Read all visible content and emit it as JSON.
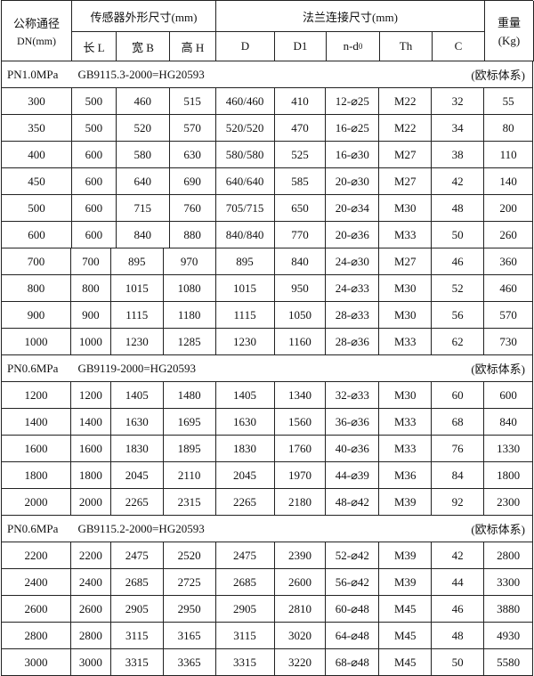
{
  "header": {
    "dn_label": "公称通径",
    "dn_unit": "DN(mm)",
    "sensor_group": "传感器外形尺寸(mm)",
    "flange_group": "法兰连接尺寸(mm)",
    "weight_label": "重量",
    "weight_unit": "(Kg)",
    "columns": [
      "长 L",
      "宽 B",
      "高 H",
      "D",
      "D1",
      "n-d",
      "Th",
      "C"
    ],
    "nd_subscript": "0"
  },
  "sections": [
    {
      "pressure": "PN1.0MPa",
      "standard": "GB9115.3-2000=HG20593",
      "system": "(欧标体系)",
      "rows": [
        [
          "300",
          "500",
          "460",
          "515",
          "460/460",
          "410",
          "12-⌀25",
          "M22",
          "32",
          "55"
        ],
        [
          "350",
          "500",
          "520",
          "570",
          "520/520",
          "470",
          "16-⌀25",
          "M22",
          "34",
          "80"
        ],
        [
          "400",
          "600",
          "580",
          "630",
          "580/580",
          "525",
          "16-⌀30",
          "M27",
          "38",
          "110"
        ],
        [
          "450",
          "600",
          "640",
          "690",
          "640/640",
          "585",
          "20-⌀30",
          "M27",
          "42",
          "140"
        ],
        [
          "500",
          "600",
          "715",
          "760",
          "705/715",
          "650",
          "20-⌀34",
          "M30",
          "48",
          "200"
        ],
        [
          "600",
          "600",
          "840",
          "880",
          "840/840",
          "770",
          "20-⌀36",
          "M33",
          "50",
          "260"
        ],
        [
          "700",
          "700",
          "895",
          "970",
          "895",
          "840",
          "24-⌀30",
          "M27",
          "46",
          "360"
        ],
        [
          "800",
          "800",
          "1015",
          "1080",
          "1015",
          "950",
          "24-⌀33",
          "M30",
          "52",
          "460"
        ],
        [
          "900",
          "900",
          "1115",
          "1180",
          "1115",
          "1050",
          "28-⌀33",
          "M30",
          "56",
          "570"
        ],
        [
          "1000",
          "1000",
          "1230",
          "1285",
          "1230",
          "1160",
          "28-⌀36",
          "M33",
          "62",
          "730"
        ]
      ]
    },
    {
      "pressure": "PN0.6MPa",
      "standard": "GB9119-2000=HG20593",
      "system": "(欧标体系)",
      "rows": [
        [
          "1200",
          "1200",
          "1405",
          "1480",
          "1405",
          "1340",
          "32-⌀33",
          "M30",
          "60",
          "600"
        ],
        [
          "1400",
          "1400",
          "1630",
          "1695",
          "1630",
          "1560",
          "36-⌀36",
          "M33",
          "68",
          "840"
        ],
        [
          "1600",
          "1600",
          "1830",
          "1895",
          "1830",
          "1760",
          "40-⌀36",
          "M33",
          "76",
          "1330"
        ],
        [
          "1800",
          "1800",
          "2045",
          "2110",
          "2045",
          "1970",
          "44-⌀39",
          "M36",
          "84",
          "1800"
        ],
        [
          "2000",
          "2000",
          "2265",
          "2315",
          "2265",
          "2180",
          "48-⌀42",
          "M39",
          "92",
          "2300"
        ]
      ]
    },
    {
      "pressure": "PN0.6MPa",
      "standard": "GB9115.2-2000=HG20593",
      "system": "(欧标体系)",
      "rows": [
        [
          "2200",
          "2200",
          "2475",
          "2520",
          "2475",
          "2390",
          "52-⌀42",
          "M39",
          "42",
          "2800"
        ],
        [
          "2400",
          "2400",
          "2685",
          "2725",
          "2685",
          "2600",
          "56-⌀42",
          "M39",
          "44",
          "3300"
        ],
        [
          "2600",
          "2600",
          "2905",
          "2950",
          "2905",
          "2810",
          "60-⌀48",
          "M45",
          "46",
          "3880"
        ],
        [
          "2800",
          "2800",
          "3115",
          "3165",
          "3115",
          "3020",
          "64-⌀48",
          "M45",
          "48",
          "4930"
        ],
        [
          "3000",
          "3000",
          "3315",
          "3365",
          "3315",
          "3220",
          "68-⌀48",
          "M45",
          "50",
          "5580"
        ]
      ]
    }
  ]
}
